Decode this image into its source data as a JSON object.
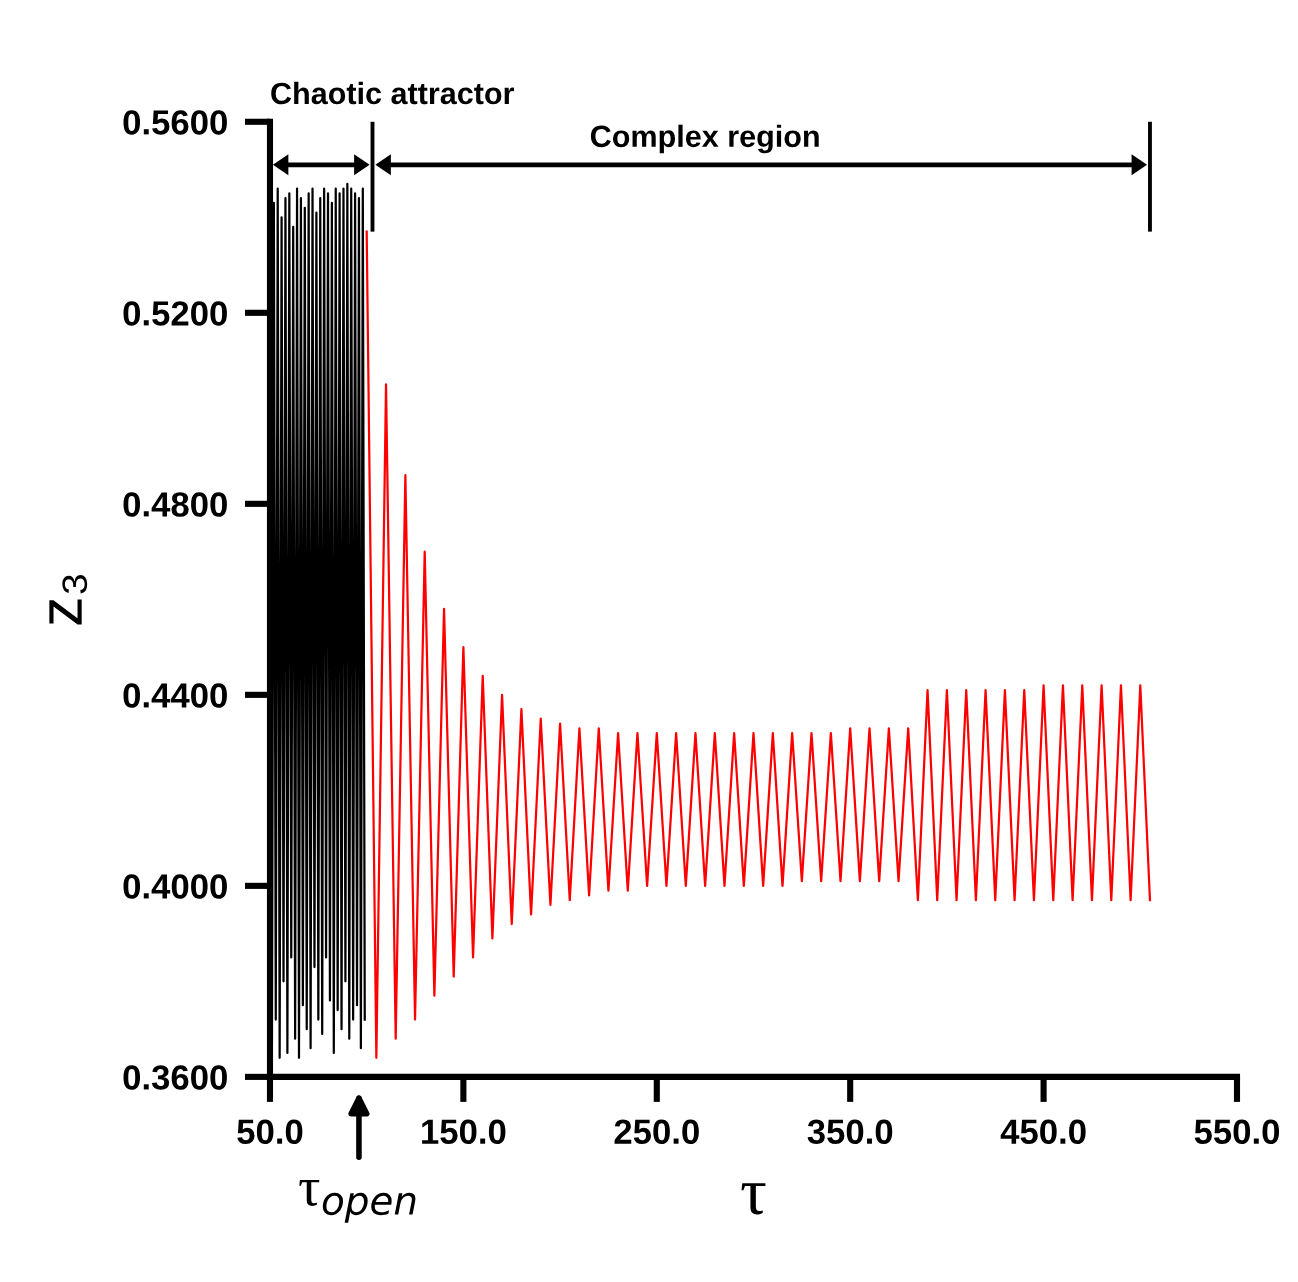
{
  "chart_data": {
    "type": "line",
    "xlabel": "τ",
    "ylabel": "z₃",
    "xlim": [
      50,
      550
    ],
    "ylim": [
      0.36,
      0.56
    ],
    "xticks": [
      {
        "value": 50,
        "label": "50.0"
      },
      {
        "value": 150,
        "label": "150.0"
      },
      {
        "value": 250,
        "label": "250.0"
      },
      {
        "value": 350,
        "label": "350.0"
      },
      {
        "value": 450,
        "label": "450.0"
      },
      {
        "value": 550,
        "label": "550.0"
      }
    ],
    "yticks": [
      {
        "value": 0.36,
        "label": "0.3600"
      },
      {
        "value": 0.4,
        "label": "0.4000"
      },
      {
        "value": 0.44,
        "label": "0.4400"
      },
      {
        "value": 0.48,
        "label": "0.4800"
      },
      {
        "value": 0.52,
        "label": "0.5200"
      },
      {
        "value": 0.56,
        "label": "0.5600"
      }
    ],
    "annotations": [
      "Chaotic attractor",
      "Complex region",
      "τ$_{open}$"
    ],
    "series": [
      {
        "color": "#000000",
        "x": [
          50,
          51,
          52,
          53,
          54,
          55,
          56,
          57,
          58,
          59,
          60,
          61,
          62,
          63,
          64,
          65,
          66,
          67,
          68,
          69,
          70,
          71,
          72,
          73,
          74,
          75,
          76,
          77,
          78,
          79,
          80,
          81,
          82,
          83,
          84,
          85,
          86,
          87,
          88,
          89,
          90,
          91,
          92,
          93,
          94,
          95,
          96,
          97,
          98,
          99
        ],
        "values": [
          0.545,
          0.366,
          0.543,
          0.372,
          0.546,
          0.364,
          0.54,
          0.38,
          0.544,
          0.365,
          0.545,
          0.385,
          0.538,
          0.368,
          0.546,
          0.364,
          0.544,
          0.375,
          0.542,
          0.37,
          0.545,
          0.366,
          0.546,
          0.383,
          0.541,
          0.372,
          0.544,
          0.369,
          0.546,
          0.385,
          0.545,
          0.376,
          0.543,
          0.365,
          0.546,
          0.374,
          0.545,
          0.37,
          0.546,
          0.38,
          0.547,
          0.368,
          0.546,
          0.372,
          0.545,
          0.375,
          0.544,
          0.366,
          0.546,
          0.372
        ]
      },
      {
        "color": "#ff0000",
        "x": [
          100,
          105,
          110,
          115,
          120,
          125,
          130,
          135,
          140,
          145,
          150,
          155,
          160,
          165,
          170,
          175,
          180,
          185,
          190,
          195,
          200,
          205,
          210,
          215,
          220,
          225,
          230,
          235,
          240,
          245,
          250,
          255,
          260,
          265,
          270,
          275,
          280,
          285,
          290,
          295,
          300,
          305,
          310,
          315,
          320,
          325,
          330,
          335,
          340,
          345,
          350,
          355,
          360,
          365,
          370,
          375,
          380,
          385,
          390,
          395,
          400,
          405,
          410,
          415,
          420,
          425,
          430,
          435,
          440,
          445,
          450,
          455,
          460,
          465,
          470,
          475,
          480,
          485,
          490,
          495,
          500,
          505
        ],
        "values": [
          0.537,
          0.364,
          0.505,
          0.368,
          0.486,
          0.372,
          0.47,
          0.377,
          0.458,
          0.381,
          0.45,
          0.385,
          0.444,
          0.389,
          0.44,
          0.392,
          0.437,
          0.394,
          0.435,
          0.396,
          0.434,
          0.397,
          0.433,
          0.398,
          0.433,
          0.399,
          0.432,
          0.399,
          0.432,
          0.4,
          0.432,
          0.4,
          0.432,
          0.4,
          0.432,
          0.4,
          0.432,
          0.4,
          0.432,
          0.4,
          0.432,
          0.4,
          0.432,
          0.4,
          0.432,
          0.401,
          0.432,
          0.401,
          0.432,
          0.401,
          0.433,
          0.401,
          0.433,
          0.401,
          0.433,
          0.401,
          0.433,
          0.397,
          0.441,
          0.397,
          0.441,
          0.397,
          0.441,
          0.397,
          0.441,
          0.397,
          0.441,
          0.397,
          0.441,
          0.397,
          0.442,
          0.397,
          0.442,
          0.397,
          0.442,
          0.397,
          0.442,
          0.397,
          0.442,
          0.397,
          0.442,
          0.397
        ]
      }
    ]
  }
}
